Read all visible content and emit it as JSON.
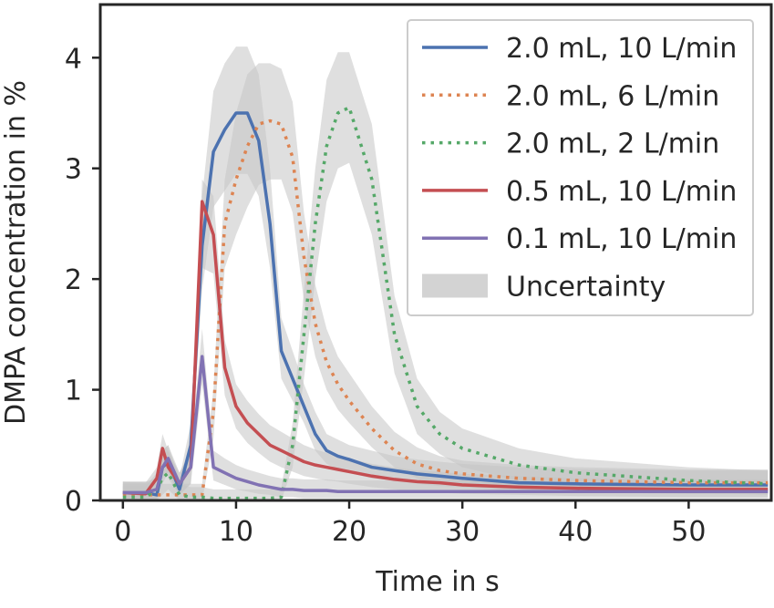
{
  "chart_data": {
    "type": "line",
    "xlabel": "Time in s",
    "ylabel": "DMPA concentration in %",
    "xlim": [
      -2,
      57.3
    ],
    "ylim": [
      0,
      4.48
    ],
    "xticks": [
      0,
      10,
      20,
      30,
      40,
      50
    ],
    "yticks": [
      0,
      1,
      2,
      3,
      4
    ],
    "legend": "upper right",
    "band_label": "Uncertainty",
    "band_color": "#c4c4c4",
    "x": [
      0,
      2,
      3,
      3.5,
      4,
      5,
      6,
      7,
      8,
      9,
      10,
      11,
      12,
      13,
      14,
      15,
      16,
      17,
      18,
      19,
      20,
      22,
      24,
      26,
      28,
      30,
      35,
      40,
      50,
      57
    ],
    "series": [
      {
        "name": "2.0 mL, 10 L/min",
        "color": "#4c72b0",
        "linestyle": "solid",
        "values": [
          0.07,
          0.07,
          0.05,
          0.3,
          0.35,
          0.1,
          0.5,
          2.3,
          3.15,
          3.35,
          3.5,
          3.5,
          3.25,
          2.5,
          1.35,
          1.1,
          0.85,
          0.6,
          0.45,
          0.4,
          0.37,
          0.3,
          0.27,
          0.24,
          0.22,
          0.2,
          0.16,
          0.15,
          0.14,
          0.14
        ],
        "upper": [
          0.17,
          0.17,
          0.15,
          0.45,
          0.5,
          0.2,
          0.7,
          2.75,
          3.7,
          3.95,
          4.1,
          4.1,
          3.85,
          3.0,
          1.65,
          1.35,
          1.05,
          0.8,
          0.6,
          0.55,
          0.5,
          0.45,
          0.4,
          0.37,
          0.35,
          0.33,
          0.3,
          0.28,
          0.27,
          0.27
        ],
        "lower": [
          0,
          0,
          0,
          0.2,
          0.25,
          0.05,
          0.35,
          1.9,
          2.65,
          2.8,
          2.95,
          2.95,
          2.75,
          2.1,
          1.1,
          0.9,
          0.7,
          0.45,
          0.33,
          0.28,
          0.25,
          0.2,
          0.18,
          0.15,
          0.13,
          0.12,
          0.08,
          0.07,
          0.06,
          0.06
        ]
      },
      {
        "name": "2.0 mL, 6 L/min",
        "color": "#dd8452",
        "linestyle": "dotted",
        "values": [
          0.05,
          0.05,
          0.05,
          0.05,
          0.05,
          0.05,
          0.05,
          0.05,
          0.8,
          2.5,
          2.9,
          3.2,
          3.4,
          3.43,
          3.4,
          3.1,
          2.2,
          1.6,
          1.25,
          1.05,
          0.9,
          0.65,
          0.45,
          0.33,
          0.27,
          0.24,
          0.2,
          0.18,
          0.16,
          0.16
        ],
        "upper": [
          0.15,
          0.15,
          0.15,
          0.15,
          0.15,
          0.15,
          0.15,
          0.15,
          1.0,
          2.9,
          3.5,
          3.85,
          3.95,
          3.95,
          3.9,
          3.6,
          2.6,
          1.95,
          1.55,
          1.3,
          1.15,
          0.85,
          0.62,
          0.48,
          0.4,
          0.36,
          0.32,
          0.3,
          0.28,
          0.28
        ],
        "lower": [
          0,
          0,
          0,
          0,
          0,
          0,
          0,
          0,
          0.55,
          2.1,
          2.4,
          2.65,
          2.85,
          2.9,
          2.9,
          2.6,
          1.8,
          1.3,
          1.0,
          0.82,
          0.7,
          0.48,
          0.3,
          0.2,
          0.15,
          0.13,
          0.1,
          0.08,
          0.06,
          0.06
        ]
      },
      {
        "name": "2.0 mL, 2 L/min",
        "color": "#55a868",
        "linestyle": "dotted",
        "values": [
          0.03,
          0.03,
          0.1,
          0.2,
          0.25,
          0.05,
          0.03,
          0.03,
          0.02,
          0.02,
          0.02,
          0.02,
          0.02,
          0.02,
          0.03,
          0.5,
          1.5,
          2.5,
          3.2,
          3.5,
          3.55,
          2.9,
          1.5,
          0.85,
          0.6,
          0.47,
          0.32,
          0.25,
          0.18,
          0.15
        ],
        "upper": [
          0.13,
          0.13,
          0.25,
          0.4,
          0.45,
          0.15,
          0.12,
          0.12,
          0.1,
          0.1,
          0.1,
          0.1,
          0.1,
          0.1,
          0.12,
          0.7,
          1.9,
          3.0,
          3.8,
          4.05,
          4.05,
          3.4,
          1.85,
          1.1,
          0.8,
          0.65,
          0.47,
          0.38,
          0.3,
          0.27
        ],
        "lower": [
          0,
          0,
          0,
          0.05,
          0.1,
          0,
          0,
          0,
          0,
          0,
          0,
          0,
          0,
          0,
          0,
          0.3,
          1.1,
          2.0,
          2.7,
          3.0,
          3.05,
          2.4,
          1.15,
          0.6,
          0.42,
          0.3,
          0.18,
          0.12,
          0.07,
          0.05
        ]
      },
      {
        "name": "0.5 mL, 10 L/min",
        "color": "#c44e52",
        "linestyle": "solid",
        "values": [
          0.07,
          0.06,
          0.2,
          0.47,
          0.3,
          0.15,
          0.3,
          2.7,
          2.4,
          1.2,
          0.85,
          0.7,
          0.6,
          0.5,
          0.45,
          0.4,
          0.35,
          0.32,
          0.3,
          0.28,
          0.26,
          0.22,
          0.19,
          0.17,
          0.16,
          0.14,
          0.12,
          0.11,
          0.1,
          0.1
        ],
        "upper": [
          0.17,
          0.16,
          0.3,
          0.6,
          0.45,
          0.25,
          0.45,
          2.9,
          2.75,
          1.45,
          1.05,
          0.9,
          0.78,
          0.68,
          0.62,
          0.56,
          0.5,
          0.46,
          0.43,
          0.4,
          0.38,
          0.33,
          0.3,
          0.27,
          0.26,
          0.24,
          0.22,
          0.2,
          0.19,
          0.19
        ],
        "lower": [
          0,
          0,
          0.1,
          0.35,
          0.2,
          0.05,
          0.15,
          2.1,
          2.05,
          0.95,
          0.65,
          0.52,
          0.43,
          0.35,
          0.3,
          0.26,
          0.22,
          0.2,
          0.18,
          0.17,
          0.15,
          0.12,
          0.1,
          0.08,
          0.07,
          0.06,
          0.05,
          0.04,
          0.03,
          0.03
        ]
      },
      {
        "name": "0.1 mL, 10 L/min",
        "color": "#8172b3",
        "linestyle": "solid",
        "values": [
          0.07,
          0.07,
          0.1,
          0.3,
          0.38,
          0.15,
          0.3,
          1.3,
          0.3,
          0.25,
          0.2,
          0.17,
          0.14,
          0.12,
          0.1,
          0.1,
          0.09,
          0.09,
          0.09,
          0.08,
          0.08,
          0.08,
          0.08,
          0.08,
          0.08,
          0.08,
          0.08,
          0.08,
          0.08,
          0.08
        ],
        "upper": [
          0.17,
          0.17,
          0.2,
          0.45,
          0.5,
          0.25,
          0.45,
          1.55,
          0.45,
          0.38,
          0.32,
          0.28,
          0.25,
          0.22,
          0.2,
          0.2,
          0.19,
          0.19,
          0.19,
          0.18,
          0.18,
          0.18,
          0.18,
          0.18,
          0.18,
          0.18,
          0.18,
          0.18,
          0.18,
          0.18
        ],
        "lower": [
          0,
          0,
          0.02,
          0.15,
          0.25,
          0.05,
          0.15,
          1.05,
          0.18,
          0.14,
          0.1,
          0.08,
          0.06,
          0.05,
          0.03,
          0.03,
          0.02,
          0.02,
          0.02,
          0.02,
          0.02,
          0.02,
          0.02,
          0.02,
          0.02,
          0.02,
          0.02,
          0.02,
          0.02,
          0.02
        ]
      }
    ]
  }
}
